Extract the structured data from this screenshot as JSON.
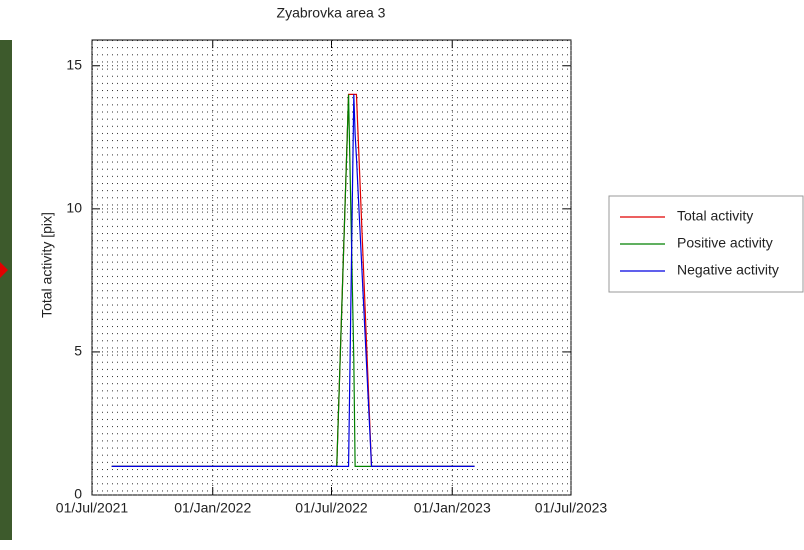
{
  "chart_data": {
    "type": "line",
    "title": "Zyabrovka area 3",
    "y_label": "Total activity [pix]",
    "x": [
      "2021-07-31",
      "2022-07-09",
      "2022-07-27",
      "2022-08-04",
      "2022-08-06",
      "2022-08-08",
      "2022-08-31",
      "2023-02-04"
    ],
    "series": [
      {
        "name": "Total activity",
        "color": "#e00000",
        "values": [
          1,
          1,
          14,
          14,
          14,
          14,
          1,
          1
        ]
      },
      {
        "name": "Positive activity",
        "color": "#008000",
        "values": [
          1,
          1,
          14,
          4.7,
          1,
          1,
          1,
          1
        ]
      },
      {
        "name": "Negative activity",
        "color": "#0000e0",
        "values": [
          1,
          1,
          1,
          14,
          12.6,
          11.8,
          1,
          1
        ]
      }
    ],
    "xlim": [
      "2021-07-01",
      "2023-07-01"
    ],
    "xticks": [
      {
        "value": "2021-07-01",
        "label": "01/Jul/2021"
      },
      {
        "value": "2022-01-01",
        "label": "01/Jan/2022"
      },
      {
        "value": "2022-07-01",
        "label": "01/Jul/2022"
      },
      {
        "value": "2023-01-01",
        "label": "01/Jan/2023"
      },
      {
        "value": "2023-07-01",
        "label": "01/Jul/2023"
      }
    ],
    "ylim": [
      0,
      15.9
    ],
    "yticks": [
      0,
      5,
      10,
      15
    ],
    "grid": true,
    "legend": "right"
  }
}
